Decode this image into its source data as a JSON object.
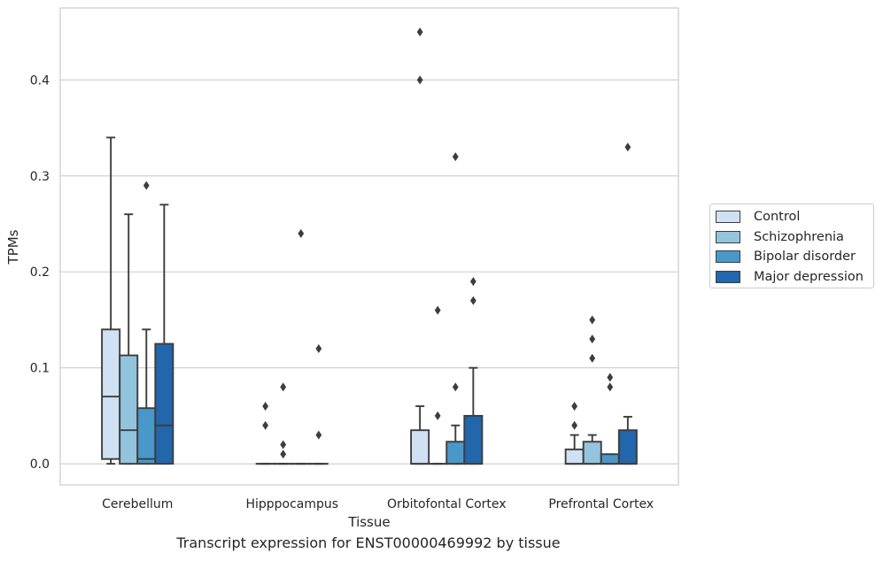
{
  "chart_data": {
    "type": "box",
    "title": "",
    "xlabel": "Tissue",
    "ylabel": "TPMs",
    "caption": "Transcript expression for ENST00000469992 by tissue",
    "ylim": [
      -0.022,
      0.475
    ],
    "yticks": [
      0.0,
      0.1,
      0.2,
      0.3,
      0.4
    ],
    "ytick_labels": [
      "0.0",
      "0.1",
      "0.2",
      "0.3",
      "0.4"
    ],
    "grid": true,
    "legend_position": "right",
    "categories": [
      "Cerebellum",
      "Hipppocampus",
      "Orbitofontal Cortex",
      "Prefrontal Cortex"
    ],
    "series": [
      {
        "name": "Control",
        "color": "#cfe1f2",
        "boxes": [
          {
            "whislo": 0.0,
            "q1": 0.005,
            "med": 0.07,
            "q3": 0.14,
            "whishi": 0.34,
            "fliers": []
          },
          {
            "whislo": 0.0,
            "q1": 0.0,
            "med": 0.0,
            "q3": 0.0,
            "whishi": 0.0,
            "fliers": [
              0.06,
              0.04
            ]
          },
          {
            "whislo": 0.0,
            "q1": 0.0,
            "med": 0.0,
            "q3": 0.035,
            "whishi": 0.06,
            "fliers": [
              0.45,
              0.4
            ]
          },
          {
            "whislo": 0.0,
            "q1": 0.0,
            "med": 0.0,
            "q3": 0.015,
            "whishi": 0.03,
            "fliers": [
              0.06,
              0.04
            ]
          }
        ]
      },
      {
        "name": "Schizophrenia",
        "color": "#93c4de",
        "boxes": [
          {
            "whislo": 0.0,
            "q1": 0.0,
            "med": 0.035,
            "q3": 0.113,
            "whishi": 0.26,
            "fliers": []
          },
          {
            "whislo": 0.0,
            "q1": 0.0,
            "med": 0.0,
            "q3": 0.0,
            "whishi": 0.0,
            "fliers": [
              0.08,
              0.02,
              0.01
            ]
          },
          {
            "whislo": 0.0,
            "q1": 0.0,
            "med": 0.0,
            "q3": 0.0,
            "whishi": 0.0,
            "fliers": [
              0.16,
              0.05
            ]
          },
          {
            "whislo": 0.0,
            "q1": 0.0,
            "med": 0.0,
            "q3": 0.023,
            "whishi": 0.03,
            "fliers": [
              0.15,
              0.13,
              0.11
            ]
          }
        ]
      },
      {
        "name": "Bipolar disorder",
        "color": "#4a98c9",
        "boxes": [
          {
            "whislo": 0.0,
            "q1": 0.0,
            "med": 0.005,
            "q3": 0.058,
            "whishi": 0.14,
            "fliers": [
              0.29
            ]
          },
          {
            "whislo": 0.0,
            "q1": 0.0,
            "med": 0.0,
            "q3": 0.0,
            "whishi": 0.0,
            "fliers": [
              0.24
            ]
          },
          {
            "whislo": 0.0,
            "q1": 0.0,
            "med": 0.0,
            "q3": 0.023,
            "whishi": 0.04,
            "fliers": [
              0.32,
              0.08
            ]
          },
          {
            "whislo": 0.0,
            "q1": 0.0,
            "med": 0.0,
            "q3": 0.01,
            "whishi": 0.01,
            "fliers": [
              0.09,
              0.08
            ]
          }
        ]
      },
      {
        "name": "Major depression",
        "color": "#2266ac",
        "boxes": [
          {
            "whislo": 0.0,
            "q1": 0.0,
            "med": 0.04,
            "q3": 0.125,
            "whishi": 0.27,
            "fliers": []
          },
          {
            "whislo": 0.0,
            "q1": 0.0,
            "med": 0.0,
            "q3": 0.0,
            "whishi": 0.0,
            "fliers": [
              0.12,
              0.03
            ]
          },
          {
            "whislo": 0.0,
            "q1": 0.0,
            "med": 0.0,
            "q3": 0.05,
            "whishi": 0.1,
            "fliers": [
              0.19,
              0.17
            ]
          },
          {
            "whislo": 0.0,
            "q1": 0.0,
            "med": 0.0,
            "q3": 0.035,
            "whishi": 0.049,
            "fliers": [
              0.33
            ]
          }
        ]
      }
    ]
  }
}
